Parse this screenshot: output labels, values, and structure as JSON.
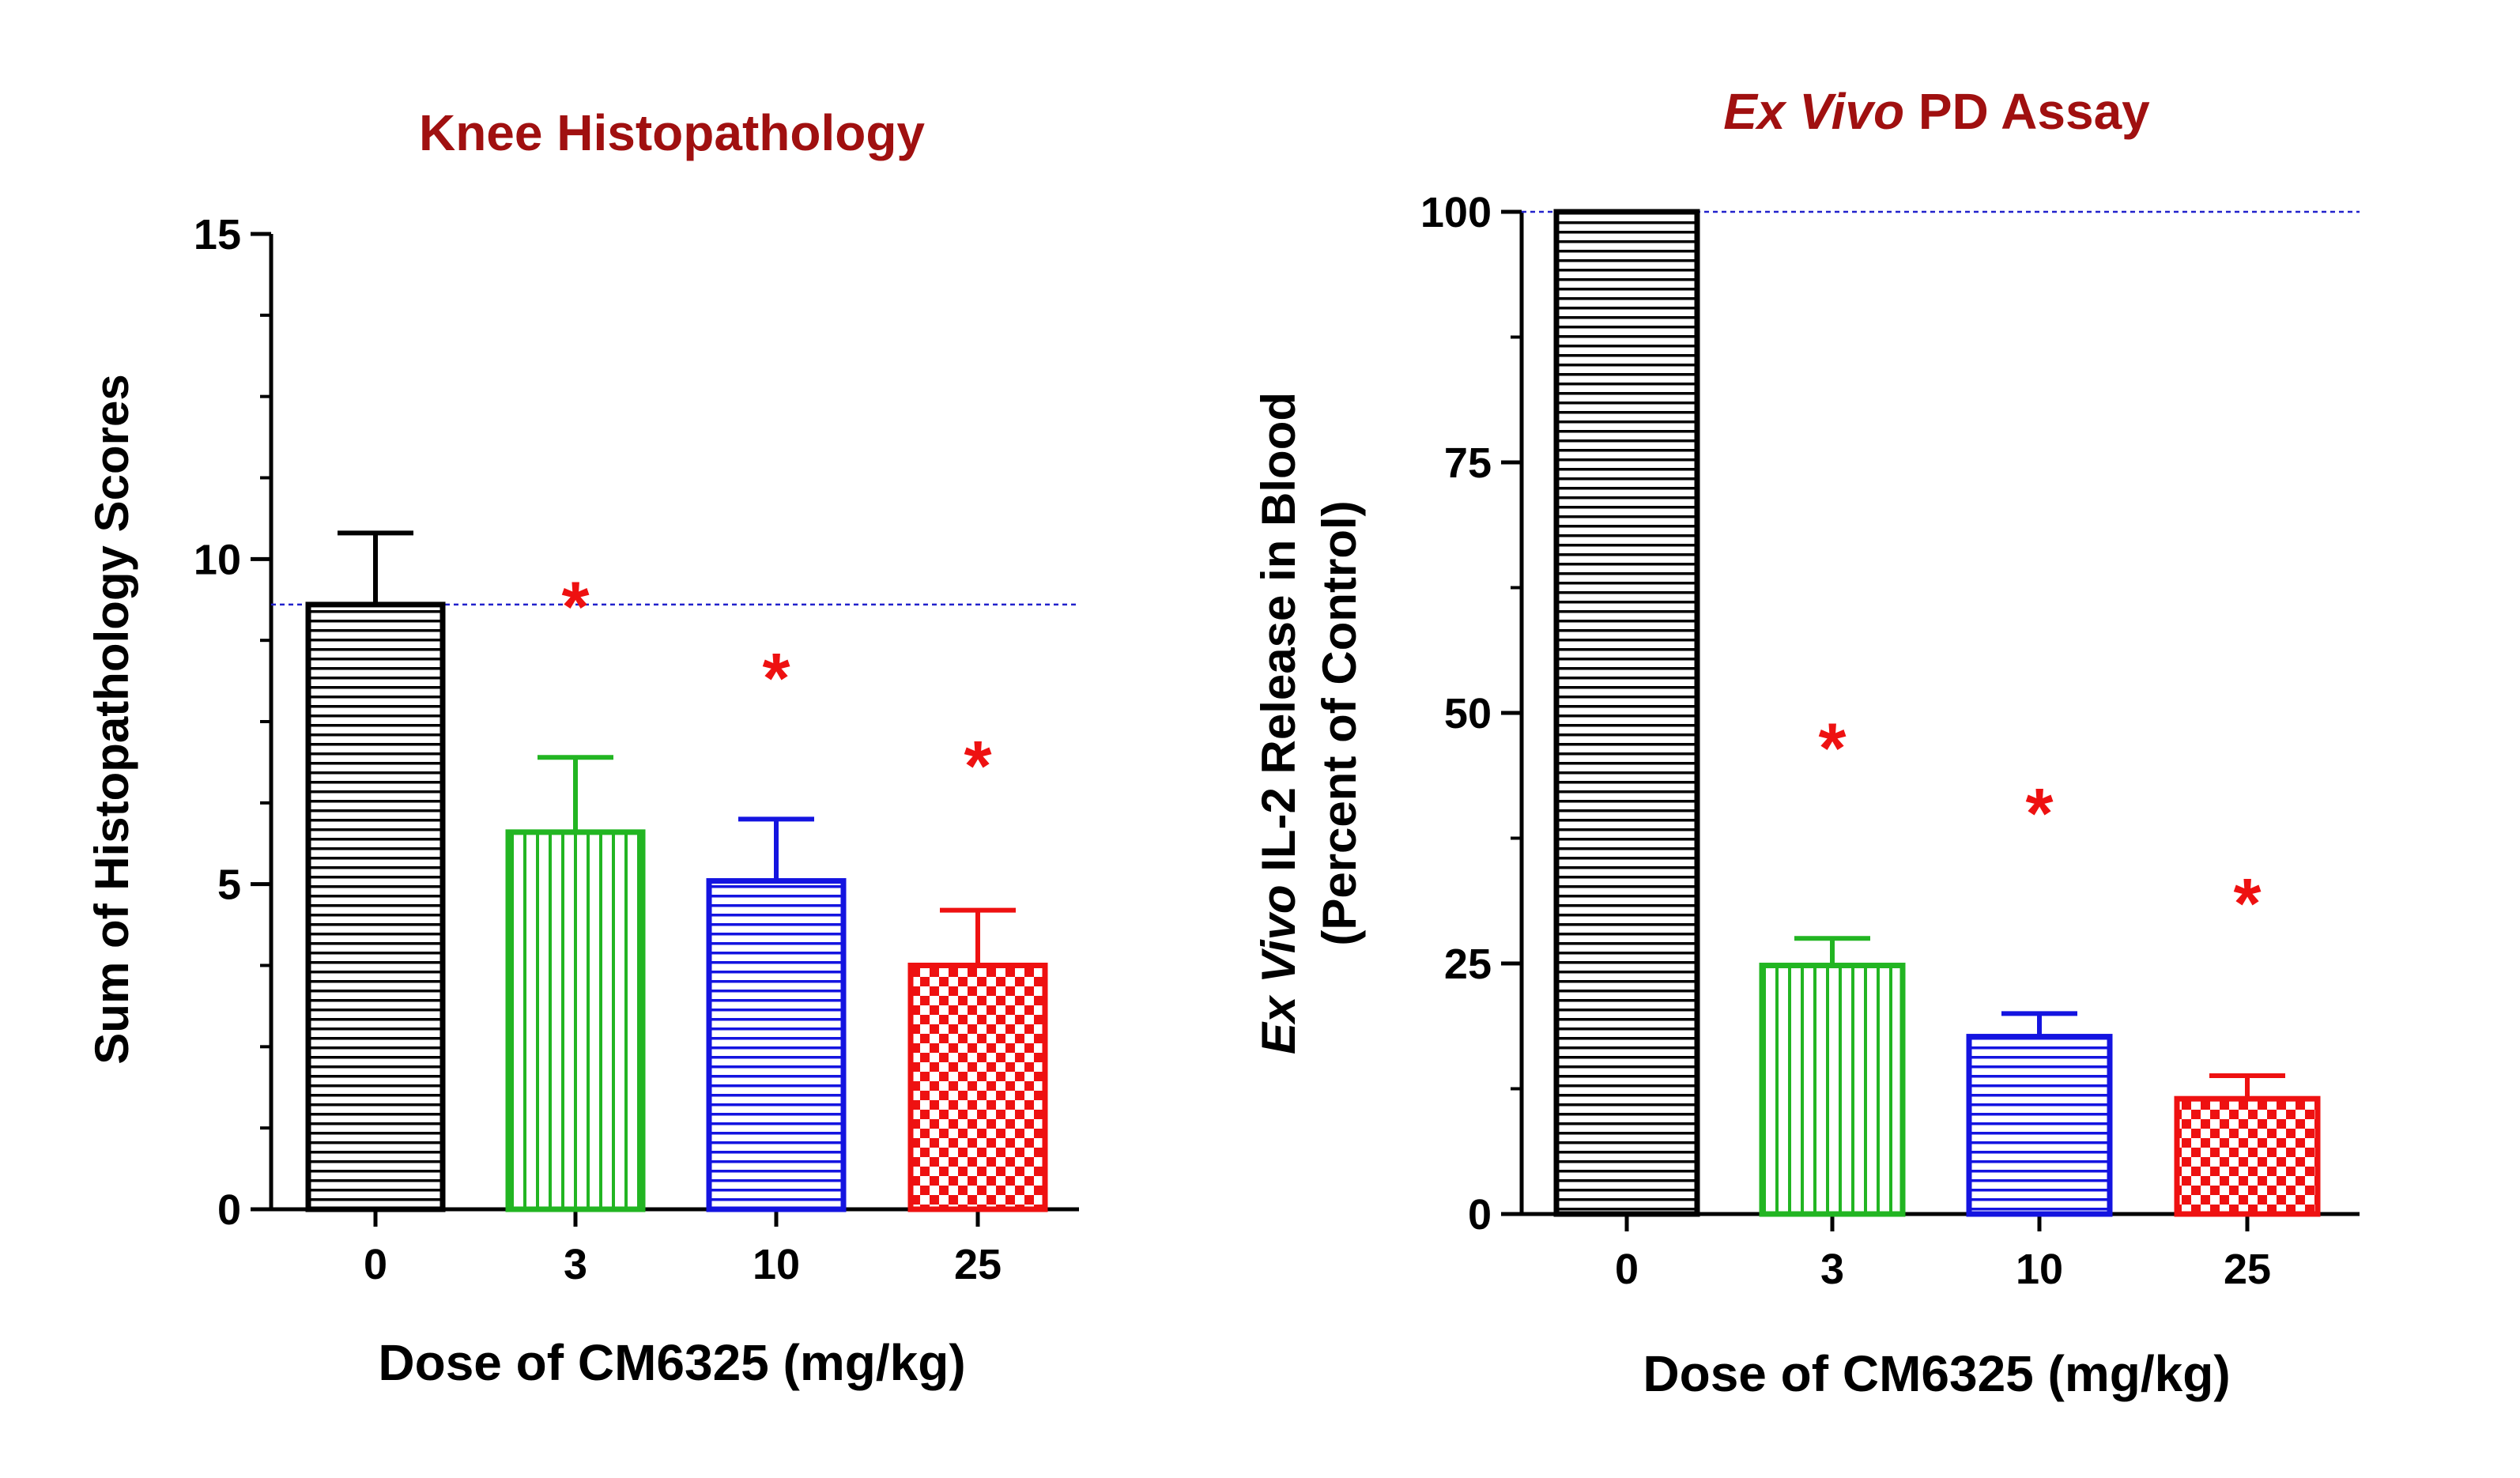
{
  "chart_data": [
    {
      "type": "bar",
      "title": "Knee Histopathology",
      "title_color": "#a01010",
      "xlabel": "Dose of CM6325 (mg/kg)",
      "ylabel": "Sum of Histopathology Scores",
      "categories": [
        "0",
        "3",
        "10",
        "25"
      ],
      "values": [
        9.3,
        5.8,
        5.05,
        3.75
      ],
      "error_upper": [
        10.4,
        6.95,
        6.0,
        4.6
      ],
      "colors": [
        "#000000",
        "#22b522",
        "#1414e0",
        "#ee1111"
      ],
      "patterns": [
        "horizontal-lines",
        "vertical-lines",
        "horizontal-lines",
        "checkerboard"
      ],
      "ylim": [
        0,
        15
      ],
      "yticks": [
        "0",
        "5",
        "10",
        "15"
      ],
      "reference_line": 9.3,
      "reference_color": "#2222cc",
      "significance_marks": [
        {
          "category": "3",
          "label": "*",
          "y": 9.5
        },
        {
          "category": "10",
          "label": "*",
          "y": 8.4
        },
        {
          "category": "25",
          "label": "*",
          "y": 7.05
        }
      ]
    },
    {
      "type": "bar",
      "title_parts": [
        {
          "text": "Ex Vivo",
          "italic": true
        },
        {
          "text": " PD Assay",
          "italic": false
        }
      ],
      "title_color": "#a01010",
      "xlabel": "Dose of CM6325 (mg/kg)",
      "ylabel_line1_parts": [
        {
          "text": "Ex Vivo",
          "italic": true
        },
        {
          "text": " IL-2 Release in Blood",
          "italic": false
        }
      ],
      "ylabel_line2": "(Percent of Control)",
      "categories": [
        "0",
        "3",
        "10",
        "25"
      ],
      "values": [
        100,
        24.8,
        17.7,
        11.5
      ],
      "error_upper": [
        100,
        27.5,
        20.0,
        13.8
      ],
      "colors": [
        "#000000",
        "#22b522",
        "#1414e0",
        "#ee1111"
      ],
      "patterns": [
        "horizontal-lines",
        "vertical-lines",
        "horizontal-lines",
        "checkerboard"
      ],
      "ylim": [
        0,
        100
      ],
      "yticks": [
        "0",
        "25",
        "50",
        "75",
        "100"
      ],
      "reference_line": 100,
      "reference_color": "#2222cc",
      "significance_marks": [
        {
          "category": "3",
          "label": "*",
          "y": 48
        },
        {
          "category": "10",
          "label": "*",
          "y": 41.5
        },
        {
          "category": "25",
          "label": "*",
          "y": 32.5
        }
      ]
    }
  ],
  "colors": {
    "significance": "#ee1111"
  }
}
